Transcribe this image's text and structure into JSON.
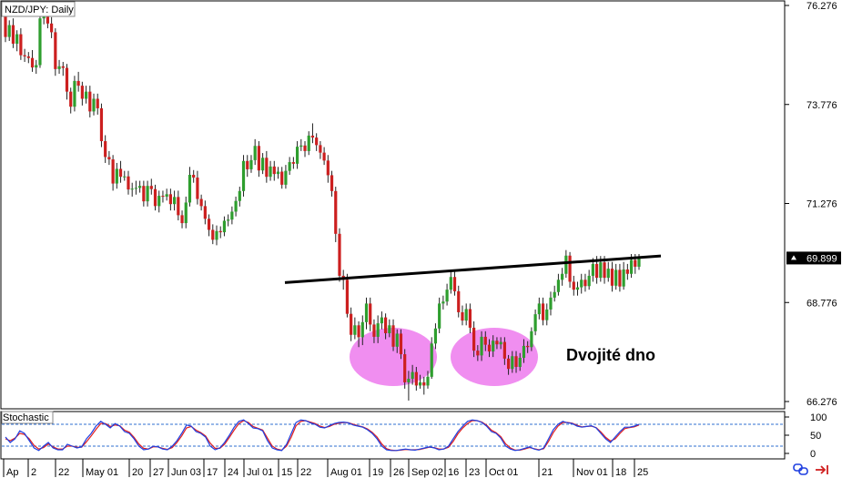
{
  "chart_data": {
    "type": "candlestick",
    "title": "NZD/JPY: Daily",
    "annotation": "Dvojité dno",
    "y_ticks": [
      76.276,
      73.776,
      71.276,
      68.776,
      66.276
    ],
    "y_tick_labels": [
      "76.276",
      "73.776",
      "71.276",
      "68.776",
      "66.276"
    ],
    "ylim": [
      66.2,
      76.3
    ],
    "current_price": 69.899,
    "current_price_label": "69.899",
    "x_tick_labels": [
      "Ap",
      "2",
      "22",
      "May 01",
      "20",
      "27",
      "Jun 03",
      "17",
      "24",
      "Jul 01",
      "15",
      "22",
      "Aug 01",
      "19",
      "26",
      "Sep 02",
      "16",
      "23",
      "Oct 01",
      "21",
      "Nov 01",
      "18",
      "25"
    ],
    "neckline": {
      "start": 69.28,
      "end": 69.95
    },
    "colors": {
      "up": "#2e9e2e",
      "down": "#cc1f1f",
      "neckline": "#000000",
      "ellipse": "#f08ef0",
      "stoch_k": "#1f3fe0",
      "stoch_d": "#e01f1f",
      "level_line": "#2f6fd0"
    },
    "stochastic": {
      "label": "Stochastic",
      "levels": [
        80,
        20
      ],
      "y_tick_labels": [
        "100",
        "50",
        "0"
      ],
      "k": [
        45,
        30,
        40,
        62,
        55,
        35,
        15,
        8,
        20,
        30,
        15,
        10,
        10,
        25,
        20,
        15,
        18,
        40,
        55,
        75,
        88,
        80,
        70,
        82,
        75,
        60,
        55,
        40,
        20,
        10,
        12,
        20,
        18,
        12,
        10,
        20,
        35,
        55,
        78,
        75,
        60,
        55,
        45,
        20,
        10,
        15,
        30,
        50,
        72,
        88,
        92,
        82,
        70,
        68,
        62,
        35,
        15,
        10,
        8,
        25,
        55,
        85,
        92,
        90,
        84,
        80,
        72,
        70,
        76,
        82,
        85,
        86,
        84,
        78,
        75,
        72,
        65,
        55,
        40,
        20,
        10,
        8,
        8,
        10,
        12,
        10,
        9,
        12,
        15,
        18,
        15,
        10,
        12,
        20,
        40,
        60,
        75,
        88,
        92,
        90,
        85,
        75,
        60,
        55,
        42,
        20,
        12,
        8,
        10,
        14,
        18,
        12,
        9,
        15,
        40,
        65,
        80,
        88,
        84,
        82,
        75,
        72,
        74,
        76,
        70,
        55,
        40,
        30,
        45,
        60,
        72,
        72,
        75,
        80
      ],
      "d": [
        40,
        35,
        42,
        55,
        52,
        40,
        22,
        12,
        16,
        26,
        18,
        12,
        12,
        20,
        20,
        17,
        17,
        32,
        48,
        66,
        82,
        82,
        74,
        78,
        76,
        64,
        58,
        44,
        26,
        14,
        12,
        18,
        18,
        14,
        11,
        16,
        30,
        48,
        70,
        74,
        64,
        57,
        48,
        28,
        14,
        14,
        25,
        44,
        64,
        82,
        90,
        85,
        74,
        69,
        64,
        42,
        20,
        12,
        9,
        20,
        45,
        76,
        88,
        90,
        86,
        82,
        75,
        71,
        74,
        80,
        83,
        85,
        84,
        80,
        76,
        73,
        67,
        58,
        45,
        26,
        13,
        9,
        8,
        9,
        11,
        10,
        10,
        11,
        14,
        17,
        16,
        12,
        12,
        17,
        33,
        54,
        70,
        82,
        90,
        90,
        86,
        78,
        64,
        57,
        46,
        26,
        15,
        9,
        9,
        12,
        16,
        13,
        10,
        13,
        33,
        57,
        75,
        85,
        85,
        83,
        77,
        73,
        74,
        75,
        71,
        59,
        44,
        34,
        40,
        55,
        68,
        71,
        73,
        78
      ]
    },
    "candles": [
      [
        76.02,
        75.48,
        76.18,
        75.35
      ],
      [
        75.48,
        75.78,
        75.9,
        75.38
      ],
      [
        75.78,
        75.31,
        75.95,
        75.2
      ],
      [
        75.31,
        75.55,
        75.65,
        75.12
      ],
      [
        75.55,
        75.02,
        75.7,
        74.9
      ],
      [
        75.02,
        74.99,
        75.18,
        74.85
      ],
      [
        74.99,
        74.95,
        75.1,
        74.82
      ],
      [
        74.95,
        74.71,
        75.15,
        74.6
      ],
      [
        74.71,
        74.77,
        74.9,
        74.55
      ],
      [
        74.77,
        75.95,
        76.1,
        74.7
      ],
      [
        75.95,
        76.19,
        76.3,
        75.8
      ],
      [
        76.19,
        75.82,
        76.3,
        75.7
      ],
      [
        75.82,
        75.6,
        75.98,
        75.45
      ],
      [
        75.6,
        74.67,
        75.7,
        74.5
      ],
      [
        74.67,
        74.74,
        74.9,
        74.55
      ],
      [
        74.74,
        74.7,
        74.85,
        74.5
      ],
      [
        74.7,
        74.1,
        74.8,
        73.9
      ],
      [
        74.1,
        73.72,
        74.2,
        73.55
      ],
      [
        73.72,
        74.37,
        74.5,
        73.6
      ],
      [
        74.37,
        74.25,
        74.6,
        74.1
      ],
      [
        74.25,
        73.92,
        74.35,
        73.75
      ],
      [
        73.92,
        74.1,
        74.25,
        73.8
      ],
      [
        74.1,
        73.6,
        74.25,
        73.45
      ],
      [
        73.6,
        73.92,
        74.05,
        73.5
      ],
      [
        73.92,
        73.68,
        74.05,
        73.52
      ],
      [
        73.68,
        72.85,
        73.8,
        72.7
      ],
      [
        72.85,
        72.45,
        73,
        72.3
      ],
      [
        72.45,
        72.39,
        72.6,
        72.25
      ],
      [
        72.39,
        71.78,
        72.5,
        71.6
      ],
      [
        71.78,
        72.15,
        72.3,
        71.65
      ],
      [
        72.15,
        71.95,
        72.35,
        71.8
      ],
      [
        71.95,
        71.96,
        72.1,
        71.85
      ],
      [
        71.96,
        71.63,
        72.1,
        71.5
      ],
      [
        71.63,
        71.65,
        71.8,
        71.45
      ],
      [
        71.65,
        71.67,
        71.85,
        71.5
      ],
      [
        71.67,
        71.72,
        71.85,
        71.55
      ],
      [
        71.72,
        71.33,
        71.85,
        71.2
      ],
      [
        71.33,
        71.72,
        71.85,
        71.2
      ],
      [
        71.72,
        71.64,
        71.9,
        71.5
      ],
      [
        71.64,
        71.21,
        71.75,
        71.1
      ],
      [
        71.21,
        71.47,
        71.6,
        71.05
      ],
      [
        71.47,
        71.45,
        71.6,
        71.3
      ],
      [
        71.45,
        71.51,
        71.65,
        71.35
      ],
      [
        71.51,
        71.26,
        71.65,
        71.1
      ],
      [
        71.26,
        71.44,
        71.6,
        71.1
      ],
      [
        71.44,
        70.98,
        71.6,
        70.85
      ],
      [
        70.98,
        70.78,
        71.1,
        70.65
      ],
      [
        70.78,
        71.3,
        71.45,
        70.65
      ],
      [
        71.3,
        72,
        72.2,
        71.2
      ],
      [
        72,
        71.93,
        72.12,
        71.8
      ],
      [
        71.93,
        71.39,
        72.1,
        71.25
      ],
      [
        71.39,
        71.21,
        71.5,
        71.1
      ],
      [
        71.21,
        70.89,
        71.35,
        70.75
      ],
      [
        70.89,
        70.61,
        71,
        70.45
      ],
      [
        70.61,
        70.36,
        70.75,
        70.25
      ],
      [
        70.36,
        70.58,
        70.72,
        70.22
      ],
      [
        70.58,
        70.55,
        70.7,
        70.4
      ],
      [
        70.55,
        70.84,
        70.95,
        70.45
      ],
      [
        70.84,
        70.87,
        71,
        70.7
      ],
      [
        70.87,
        71.07,
        71.2,
        70.75
      ],
      [
        71.07,
        71.34,
        71.45,
        70.95
      ],
      [
        71.34,
        71.59,
        71.7,
        71.2
      ],
      [
        71.59,
        72.35,
        72.5,
        71.45
      ],
      [
        72.35,
        72.14,
        72.5,
        71.95
      ],
      [
        72.14,
        72.37,
        72.5,
        72.05
      ],
      [
        72.37,
        72.73,
        72.9,
        72.25
      ],
      [
        72.73,
        72.11,
        72.85,
        71.95
      ],
      [
        72.11,
        72.43,
        72.55,
        72.02
      ],
      [
        72.43,
        71.95,
        72.6,
        71.8
      ],
      [
        71.95,
        72.21,
        72.35,
        71.85
      ],
      [
        72.21,
        72.02,
        72.35,
        71.85
      ],
      [
        72.02,
        72.08,
        72.2,
        71.9
      ],
      [
        72.08,
        71.75,
        72.2,
        71.65
      ],
      [
        71.75,
        72.1,
        72.25,
        71.65
      ],
      [
        72.1,
        72.32,
        72.45,
        72
      ],
      [
        72.32,
        72.28,
        72.45,
        72.15
      ],
      [
        72.28,
        72.71,
        72.85,
        72.15
      ],
      [
        72.71,
        72.74,
        72.9,
        72.6
      ],
      [
        72.74,
        72.6,
        72.85,
        72.45
      ],
      [
        72.6,
        72.99,
        73.1,
        72.5
      ],
      [
        72.99,
        72.94,
        73.3,
        72.8
      ],
      [
        72.94,
        72.75,
        73.05,
        72.6
      ],
      [
        72.75,
        72.56,
        72.85,
        72.4
      ],
      [
        72.56,
        72.36,
        72.7,
        72.25
      ],
      [
        72.36,
        71.99,
        72.5,
        71.8
      ],
      [
        71.99,
        71.59,
        72.1,
        71.45
      ],
      [
        71.59,
        70.51,
        71.7,
        70.3
      ],
      [
        70.51,
        69.45,
        70.65,
        69.3
      ],
      [
        69.45,
        69.35,
        69.6,
        69.1
      ],
      [
        69.35,
        68.49,
        69.5,
        68.4
      ],
      [
        68.49,
        67.96,
        68.65,
        67.8
      ],
      [
        67.96,
        68.2,
        68.4,
        67.85
      ],
      [
        68.2,
        67.9,
        68.3,
        67.65
      ],
      [
        67.9,
        68.28,
        68.45,
        67.7
      ],
      [
        68.28,
        68.75,
        68.9,
        68.1
      ],
      [
        68.75,
        68.22,
        68.9,
        68.05
      ],
      [
        68.22,
        67.91,
        68.35,
        67.75
      ],
      [
        67.91,
        68.25,
        68.45,
        67.75
      ],
      [
        68.25,
        68.4,
        68.55,
        68.1
      ],
      [
        68.4,
        68,
        68.5,
        67.85
      ],
      [
        68,
        68.2,
        68.35,
        67.9
      ],
      [
        68.2,
        67.66,
        68.35,
        67.55
      ],
      [
        67.66,
        67.99,
        68.1,
        67.5
      ],
      [
        67.99,
        67.47,
        68.1,
        67.35
      ],
      [
        67.47,
        66.76,
        67.6,
        66.6
      ],
      [
        66.76,
        66.85,
        67.05,
        66.3
      ],
      [
        66.85,
        67.02,
        67.2,
        66.7
      ],
      [
        67.02,
        66.68,
        67.15,
        66.55
      ],
      [
        66.68,
        66.76,
        66.95,
        66.6
      ],
      [
        66.76,
        66.68,
        66.9,
        66.45
      ],
      [
        66.68,
        66.9,
        67.05,
        66.6
      ],
      [
        66.9,
        67.74,
        67.9,
        66.85
      ],
      [
        67.74,
        68.12,
        68.25,
        67.6
      ],
      [
        68.12,
        68.75,
        68.9,
        68
      ],
      [
        68.75,
        68.8,
        68.95,
        68.6
      ],
      [
        68.8,
        69.1,
        69.25,
        68.7
      ],
      [
        69.1,
        69.42,
        69.55,
        69
      ],
      [
        69.42,
        69.06,
        69.55,
        68.95
      ],
      [
        69.06,
        68.53,
        69.2,
        68.4
      ],
      [
        68.53,
        68.32,
        68.7,
        68.2
      ],
      [
        68.32,
        68.61,
        68.75,
        68.2
      ],
      [
        68.61,
        68.14,
        68.75,
        68
      ],
      [
        68.14,
        67.56,
        68.3,
        67.4
      ],
      [
        67.56,
        67.44,
        67.7,
        67.3
      ],
      [
        67.44,
        67.91,
        68.05,
        67.3
      ],
      [
        67.91,
        67.71,
        68.05,
        67.55
      ],
      [
        67.71,
        67.54,
        67.85,
        67.4
      ],
      [
        67.54,
        67.81,
        67.95,
        67.4
      ],
      [
        67.81,
        67.72,
        67.9,
        67.6
      ],
      [
        67.72,
        67.78,
        67.9,
        67.6
      ],
      [
        67.78,
        67.36,
        67.9,
        67.2
      ],
      [
        67.36,
        67.1,
        67.45,
        66.95
      ],
      [
        67.1,
        67.42,
        67.55,
        67
      ],
      [
        67.42,
        67.15,
        67.55,
        67
      ],
      [
        67.15,
        67.38,
        67.5,
        67.05
      ],
      [
        67.38,
        67.68,
        67.85,
        67.25
      ],
      [
        67.68,
        67.65,
        67.8,
        67.5
      ],
      [
        67.65,
        68.05,
        68.15,
        67.55
      ],
      [
        68.05,
        68.48,
        68.6,
        67.95
      ],
      [
        68.48,
        68.75,
        68.9,
        68.35
      ],
      [
        68.75,
        68.33,
        68.9,
        68.2
      ],
      [
        68.33,
        68.6,
        68.75,
        68.2
      ],
      [
        68.6,
        68.9,
        69.05,
        68.45
      ],
      [
        68.9,
        69.04,
        69.2,
        68.8
      ],
      [
        69.04,
        69.35,
        69.5,
        68.95
      ],
      [
        69.35,
        69.5,
        69.65,
        69.2
      ],
      [
        69.5,
        69.96,
        70.1,
        69.4
      ],
      [
        69.96,
        69.3,
        70.05,
        69.15
      ],
      [
        69.3,
        69.1,
        69.45,
        68.95
      ],
      [
        69.1,
        69.16,
        69.3,
        68.95
      ],
      [
        69.16,
        69.35,
        69.5,
        69
      ],
      [
        69.35,
        69.19,
        69.5,
        69.05
      ],
      [
        69.19,
        69.45,
        69.6,
        69.1
      ],
      [
        69.45,
        69.75,
        69.9,
        69.3
      ],
      [
        69.75,
        69.4,
        69.95,
        69.25
      ],
      [
        69.4,
        69.79,
        69.95,
        69.3
      ],
      [
        69.79,
        69.4,
        69.95,
        69.25
      ],
      [
        69.4,
        69.63,
        69.8,
        69.3
      ],
      [
        69.63,
        69.2,
        69.8,
        69.05
      ],
      [
        69.2,
        69.6,
        69.75,
        69.1
      ],
      [
        69.6,
        69.18,
        69.75,
        69.05
      ],
      [
        69.18,
        69.61,
        69.8,
        69.1
      ],
      [
        69.61,
        69.5,
        69.75,
        69.35
      ],
      [
        69.5,
        69.85,
        70,
        69.4
      ],
      [
        69.85,
        69.68,
        70,
        69.5
      ],
      [
        69.68,
        69.9,
        70,
        69.6
      ]
    ]
  }
}
